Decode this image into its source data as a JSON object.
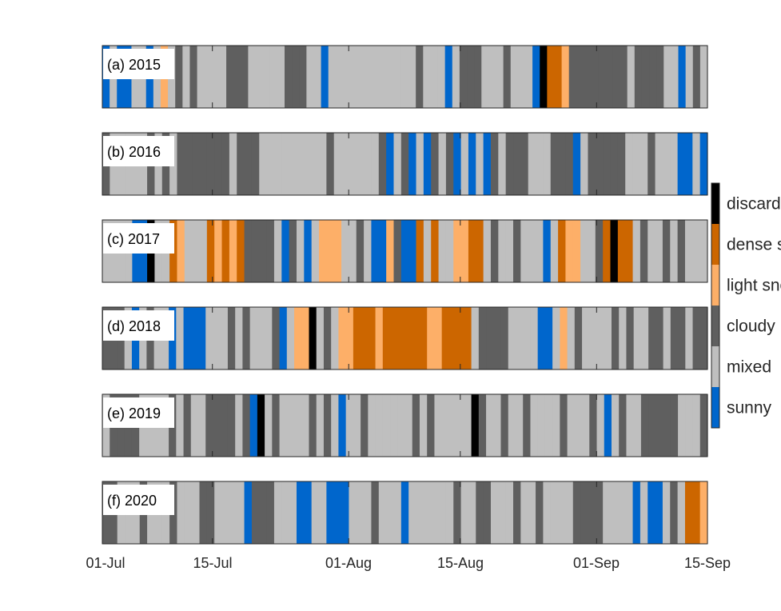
{
  "chart_data": {
    "type": "heatmap",
    "x_ticks": [
      "01-Jul",
      "15-Jul",
      "01-Aug",
      "15-Aug",
      "01-Sep",
      "15-Sep"
    ],
    "x_range": [
      "01-Jul",
      "15-Sep"
    ],
    "categories": [
      {
        "key": "S",
        "label": "sunny",
        "color": "#0066cc"
      },
      {
        "key": "M",
        "label": "mixed",
        "color": "#bfbfbf"
      },
      {
        "key": "C",
        "label": "cloudy",
        "color": "#5f5f5f"
      },
      {
        "key": "L",
        "label": "light snow",
        "color": "#fdaf68"
      },
      {
        "key": "D",
        "label": "dense snow",
        "color": "#cc6600"
      },
      {
        "key": "X",
        "label": "discarded",
        "color": "#000000"
      }
    ],
    "legend_order_top_to_bottom": [
      "discarded",
      "dense snow",
      "light snow",
      "cloudy",
      "mixed",
      "sunny"
    ],
    "panels": [
      {
        "label": "(a) 2015",
        "days": "SMSSMMSMLMCMCMMMMCCCMMMMMCCCMMSMMMMMMMMMMMMCMMMSMCCCMMMCMMMSXDDLCCCCCCCCMCCCCMMSMCM"
      },
      {
        "label": "(b) 2016",
        "days": "CMMMMMCMCMCCCCCCCMCCCMMMMMMMMMCMMMMMMCSMCSMSCMCSMSMSCMCCCMMMCCCSMCCCCCMMMCMMMSSMS"
      },
      {
        "label": "(c) 2017",
        "days": "MMMMSSXMMDLMMMDLDLDCCCCMSCMSMLLLMMCMSSLCSSDMDMMLLDDMCMMCMMMSMDLLMMCDXDDMCMMCMCMMM"
      },
      {
        "label": "(d) 2018",
        "days": "CCCMSMCMMSMSSSMMMCMCMMMCSMLLXMCMLLDDDLDDDDDDLLDDDDMCCCCMMMMSSMLMCMMMMCMCMMCCMCCMCC"
      },
      {
        "label": "(e) 2019",
        "days": "MCCCCMMMMCMCMMCCCCMCSXMCMMMMCMCMSMMCMMMMMMCMCMMMMMXCMMCMMCMMMMCMMMCMSMCMMCCCCCMMMC"
      },
      {
        "label": "(f) 2020",
        "days": "CCMMMCMMMCMMMCCMMMMSCCCMMMSSMMSSSMMMCMMMSMMMMMMCMMCCMMMCMMCMMMMCCCCMMMMSMSSMCMDDL"
      }
    ]
  }
}
